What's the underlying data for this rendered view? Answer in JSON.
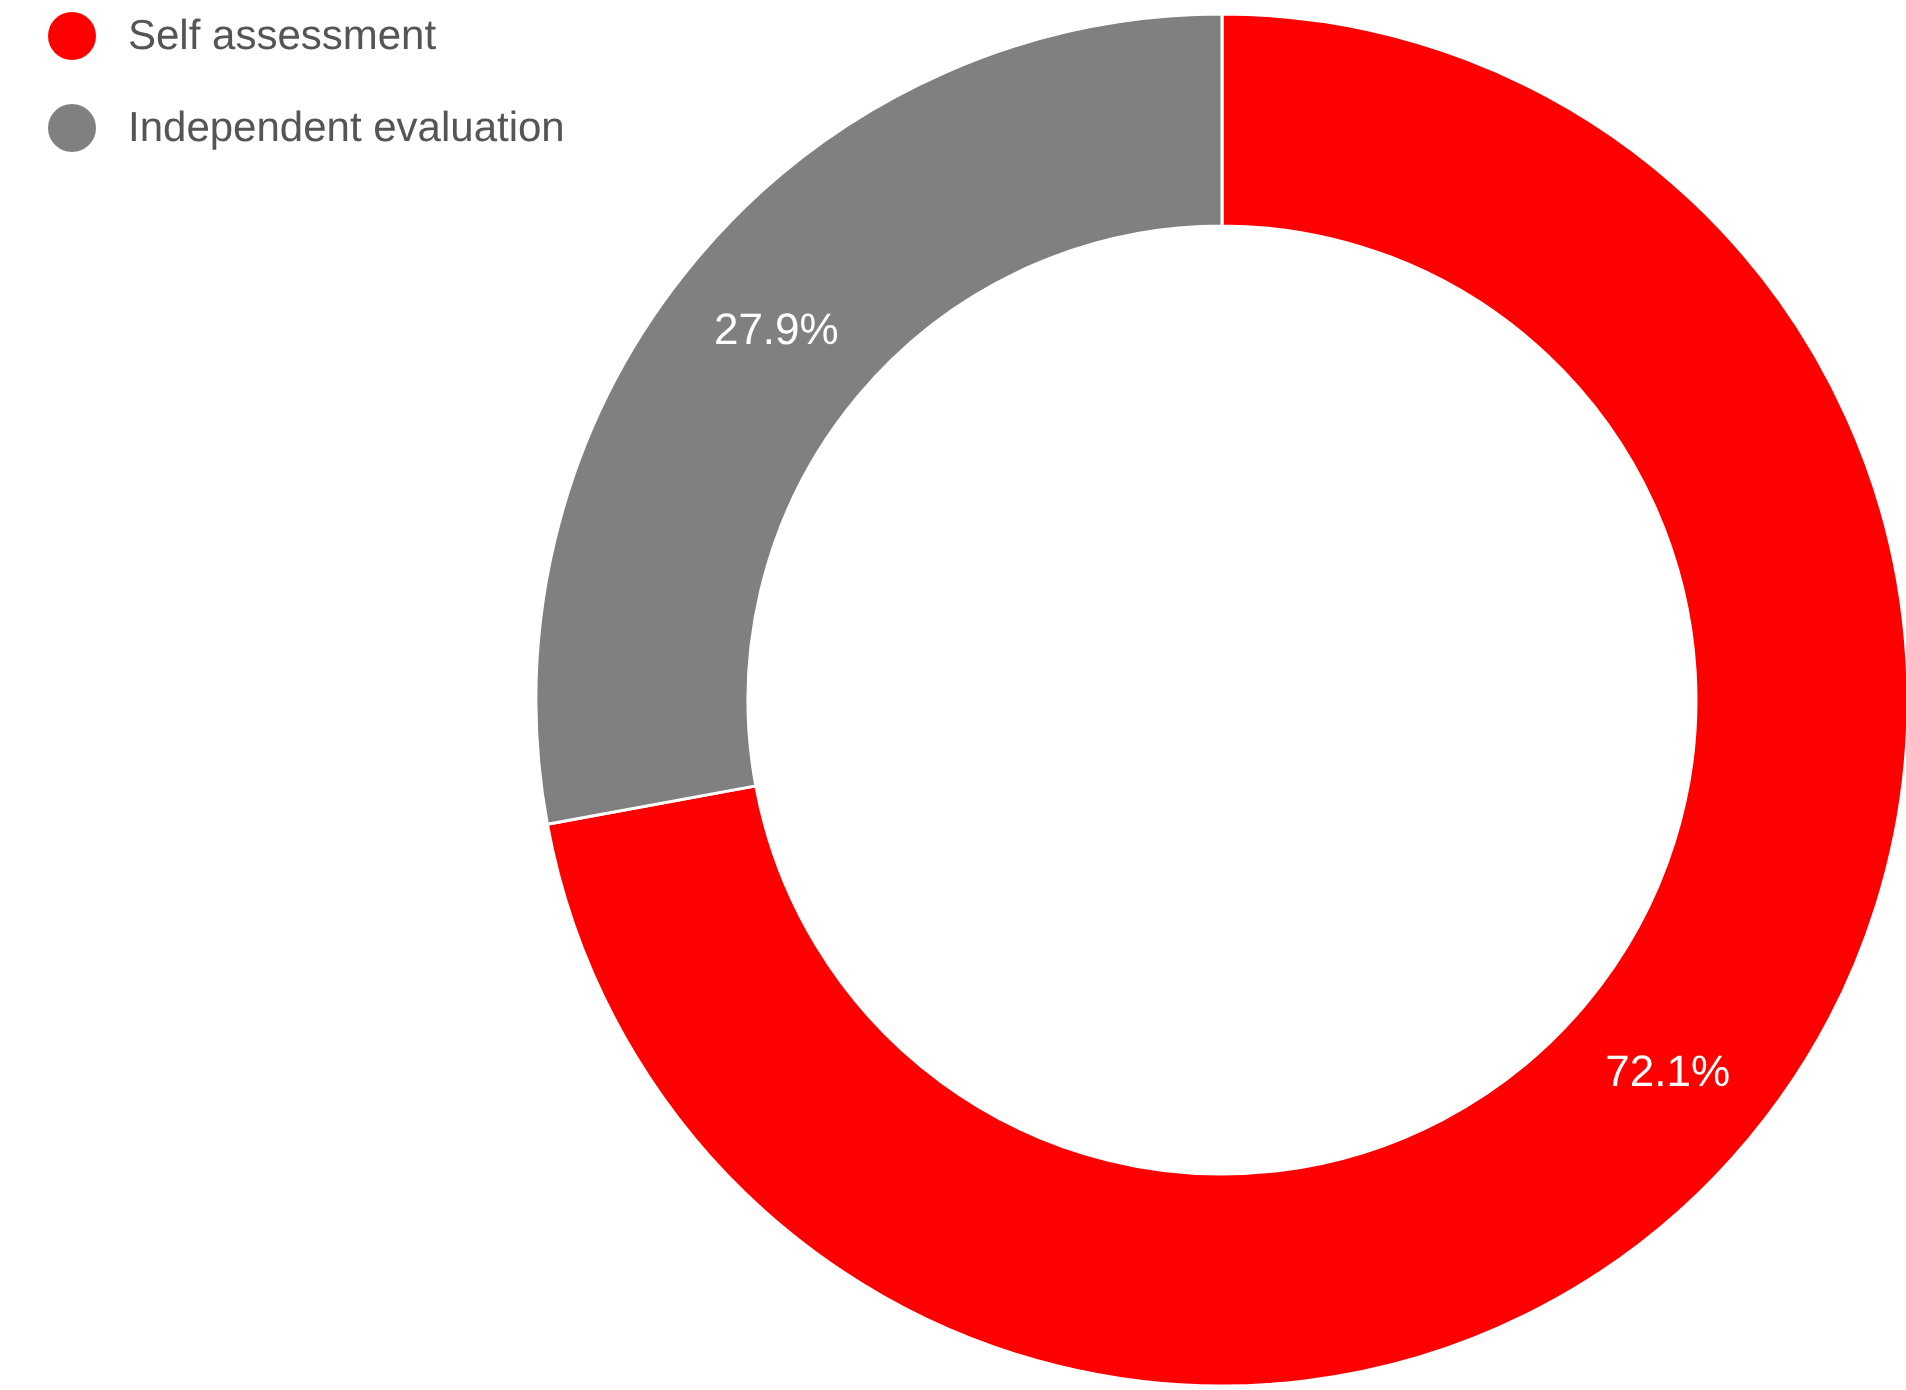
{
  "chart_data": {
    "type": "donut",
    "categories": [
      "Self assessment",
      "Independent evaluation"
    ],
    "values": [
      72.1,
      27.9
    ],
    "colors": [
      "#ff0000",
      "#808080"
    ],
    "value_labels": [
      "72.1%",
      "27.9%"
    ],
    "legend": "top left"
  }
}
